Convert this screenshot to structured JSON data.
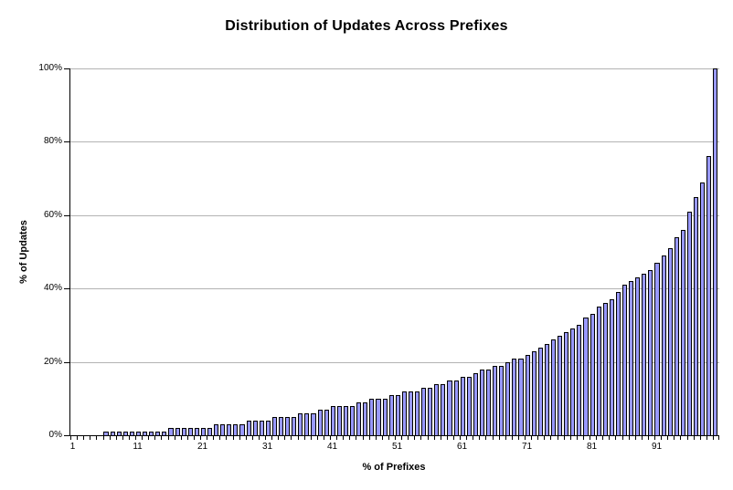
{
  "chart": {
    "title": "Distribution of Updates Across Prefixes",
    "xlabel": "% of Prefixes",
    "ylabel": "% of Updates"
  },
  "chart_data": {
    "type": "bar",
    "title": "Distribution of Updates Across Prefixes",
    "xlabel": "% of Prefixes",
    "ylabel": "% of Updates",
    "x": [
      1,
      2,
      3,
      4,
      5,
      6,
      7,
      8,
      9,
      10,
      11,
      12,
      13,
      14,
      15,
      16,
      17,
      18,
      19,
      20,
      21,
      22,
      23,
      24,
      25,
      26,
      27,
      28,
      29,
      30,
      31,
      32,
      33,
      34,
      35,
      36,
      37,
      38,
      39,
      40,
      41,
      42,
      43,
      44,
      45,
      46,
      47,
      48,
      49,
      50,
      51,
      52,
      53,
      54,
      55,
      56,
      57,
      58,
      59,
      60,
      61,
      62,
      63,
      64,
      65,
      66,
      67,
      68,
      69,
      70,
      71,
      72,
      73,
      74,
      75,
      76,
      77,
      78,
      79,
      80,
      81,
      82,
      83,
      84,
      85,
      86,
      87,
      88,
      89,
      90,
      91,
      92,
      93,
      94,
      95,
      96,
      97,
      98,
      99,
      100
    ],
    "values": [
      0,
      0,
      0,
      0,
      0,
      1,
      1,
      1,
      1,
      1,
      1,
      1,
      1,
      1,
      1,
      2,
      2,
      2,
      2,
      2,
      2,
      2,
      3,
      3,
      3,
      3,
      3,
      4,
      4,
      4,
      4,
      5,
      5,
      5,
      5,
      6,
      6,
      6,
      7,
      7,
      8,
      8,
      8,
      8,
      9,
      9,
      10,
      10,
      10,
      11,
      11,
      12,
      12,
      12,
      13,
      13,
      14,
      14,
      15,
      15,
      16,
      16,
      17,
      18,
      18,
      19,
      19,
      20,
      21,
      21,
      22,
      23,
      24,
      25,
      26,
      27,
      28,
      29,
      30,
      32,
      33,
      35,
      36,
      37,
      39,
      41,
      42,
      43,
      44,
      45,
      47,
      49,
      51,
      54,
      56,
      61,
      65,
      69,
      76,
      100
    ],
    "ylim": [
      0,
      100
    ],
    "y_tick_values": [
      0,
      20,
      40,
      60,
      80,
      100
    ],
    "y_tick_labels": [
      "0%",
      "20%",
      "40%",
      "60%",
      "80%",
      "100%"
    ],
    "x_tick_positions": [
      1,
      11,
      21,
      31,
      41,
      51,
      61,
      71,
      81,
      91
    ],
    "x_tick_labels": [
      "1",
      "11",
      "21",
      "31",
      "41",
      "51",
      "61",
      "71",
      "81",
      "91"
    ],
    "grid": true,
    "legend": false,
    "colors": {
      "bar_fill": "#9999FF",
      "bar_border": "#000000",
      "gridline": "#B3B3B3",
      "axis": "#000000",
      "background": "#FFFFFF",
      "text": "#000000"
    }
  }
}
